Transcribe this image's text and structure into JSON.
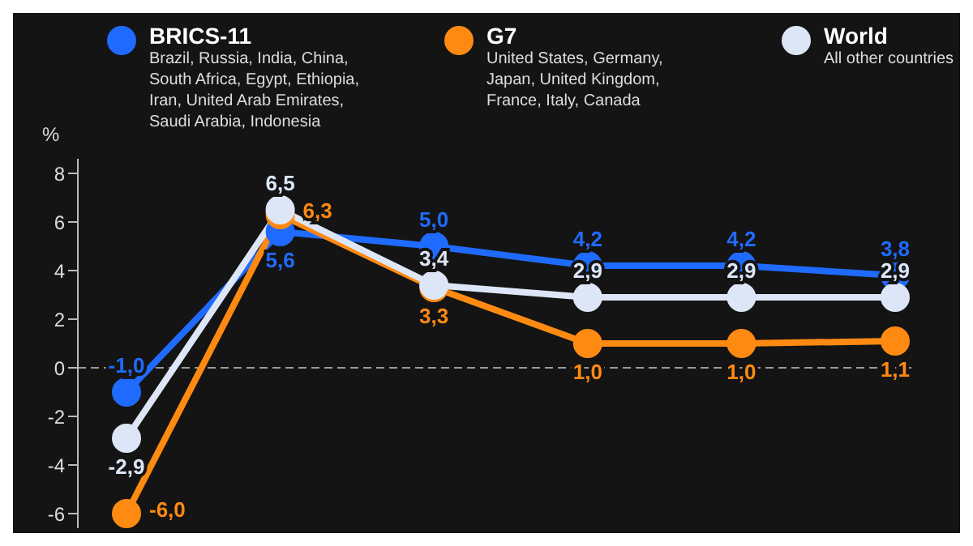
{
  "chart_data": {
    "type": "line",
    "ylabel": "%",
    "categories": [
      null,
      null,
      null,
      null,
      null,
      null
    ],
    "series": [
      {
        "name": "BRICS-11",
        "color": "#1f6bff",
        "values": [
          -1.0,
          5.6,
          5.0,
          4.2,
          4.2,
          3.8
        ],
        "value_labels": [
          "-1,0",
          "5,6",
          "5,0",
          "4,2",
          "4,2",
          "3,8"
        ]
      },
      {
        "name": "G7",
        "color": "#ff8a12",
        "values": [
          -6.0,
          6.3,
          3.3,
          1.0,
          1.0,
          1.1
        ],
        "value_labels": [
          "-6,0",
          "6,3",
          "3,3",
          "1,0",
          "1,0",
          "1,1"
        ]
      },
      {
        "name": "World",
        "color": "#dde6f7",
        "values": [
          -2.9,
          6.5,
          3.4,
          2.9,
          2.9,
          2.9
        ],
        "value_labels": [
          "-2,9",
          "6,5",
          "3,4",
          "2,9",
          "2,9",
          "2,9"
        ]
      }
    ],
    "annotations": [
      "Brazil, Russia, India, China, South Africa, Egypt, Ethiopia, Iran, United Arab Emirates, Saudi Arabia, Indonesia",
      "United States, Germany, Japan, United Kingdom, France, Italy, Canada",
      "All other countries"
    ],
    "ylim": [
      -6.6,
      8.6
    ],
    "yticks": [
      -6,
      -4,
      -2,
      0,
      2,
      4,
      6,
      8
    ],
    "tick_labels": "y",
    "grid": false,
    "legend": "top",
    "marker": "circle",
    "line_style": "solid",
    "ref_lines": [
      {
        "axis": "y",
        "value": 0,
        "color": "#9a9a9a",
        "line_style": "dashed"
      }
    ]
  }
}
